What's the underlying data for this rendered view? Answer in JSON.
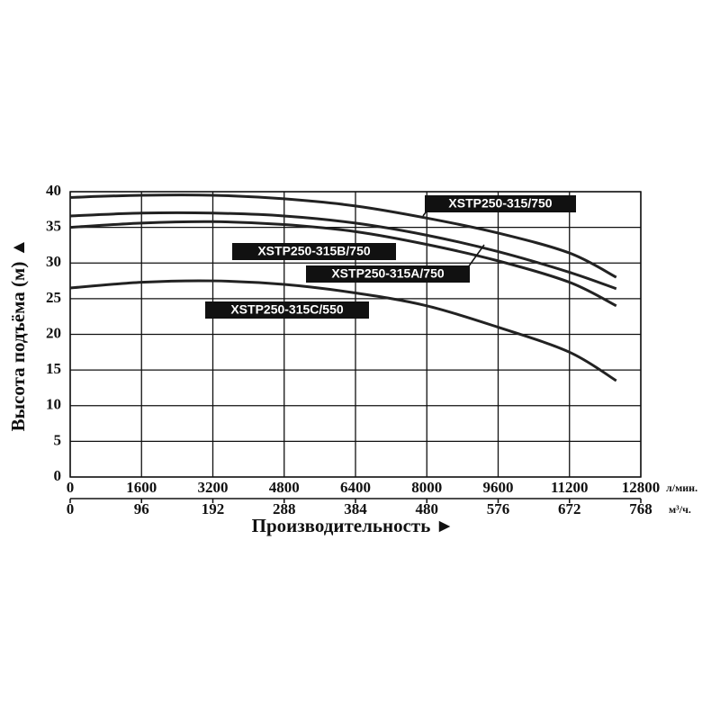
{
  "chart_data": {
    "type": "line",
    "y_label": "Высота подъёма (м) ▲",
    "x_label": "Производительность ►",
    "x_unit": "л/мин.",
    "x2_unit": "м³/ч.",
    "x": [
      0,
      1600,
      3200,
      4800,
      6400,
      8000,
      9600,
      11200,
      12250
    ],
    "series": [
      {
        "name": "XSTP250-315/750",
        "color": "#222222",
        "values": [
          39.2,
          39.5,
          39.5,
          39.0,
          38.0,
          36.3,
          34.2,
          31.4,
          28.0
        ]
      },
      {
        "name": "XSTP250-315B/750",
        "color": "#222222",
        "values": [
          36.6,
          37.0,
          37.0,
          36.6,
          35.6,
          33.9,
          31.6,
          28.7,
          26.4
        ]
      },
      {
        "name": "XSTP250-315A/750",
        "color": "#222222",
        "values": [
          35.0,
          35.6,
          35.8,
          35.4,
          34.4,
          32.6,
          30.3,
          27.3,
          24.0
        ]
      },
      {
        "name": "XSTP250-315C/550",
        "color": "#222222",
        "values": [
          26.5,
          27.3,
          27.5,
          27.0,
          25.8,
          24.0,
          21.0,
          17.5,
          13.5
        ]
      }
    ],
    "xlim": [
      0,
      12800
    ],
    "xticks": [
      0,
      1600,
      3200,
      4800,
      6400,
      8000,
      9600,
      11200,
      12800
    ],
    "x2lim": [
      0,
      768
    ],
    "x2ticks": [
      0,
      96,
      192,
      288,
      384,
      480,
      576,
      672,
      768
    ],
    "ylim": [
      0,
      40
    ],
    "yticks": [
      0,
      5,
      10,
      15,
      20,
      25,
      30,
      35,
      40
    ],
    "grid": true
  }
}
